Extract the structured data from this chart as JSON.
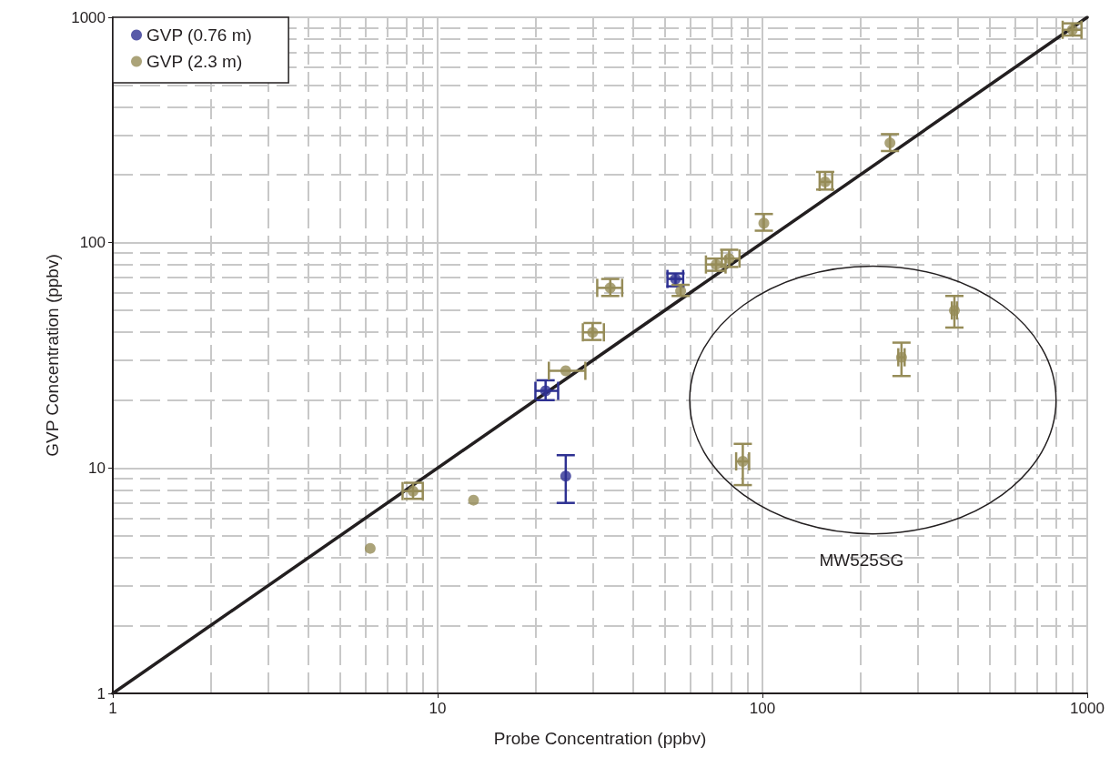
{
  "chart_data": {
    "type": "scatter",
    "xlabel": "Probe Concentration (ppbv)",
    "ylabel": "GVP Concentration (ppbv)",
    "log": "xy",
    "xlim": [
      1,
      1000
    ],
    "ylim": [
      1,
      1000
    ],
    "xticks": [
      1,
      10,
      100,
      1000
    ],
    "yticks": [
      1,
      10,
      100,
      1000
    ],
    "grid": true,
    "legend": "top left",
    "marker": "circle",
    "annotations": [
      "MW525SG"
    ],
    "series": [
      {
        "name": "GVP (0.76 m)",
        "color": "#2e3192",
        "x": [
          21.5,
          24.8,
          54
        ],
        "values": [
          22,
          9.2,
          69
        ],
        "errors": [
          [
            20,
            24.5
          ],
          [
            7,
            11.4
          ],
          [
            64,
            73
          ]
        ],
        "xerrors": [
          [
            20,
            23.5
          ],
          null,
          [
            51,
            57
          ]
        ]
      },
      {
        "name": "GVP (2.3 m)",
        "color": "#968c58",
        "x": [
          6.2,
          8.4,
          12.9,
          24.8,
          30,
          34,
          56,
          72,
          79,
          101,
          156,
          247,
          900,
          87,
          268,
          390
        ],
        "values": [
          4.4,
          7.9,
          7.2,
          27,
          40,
          63,
          61,
          80,
          85,
          122,
          186,
          277,
          880,
          10.7,
          31,
          50
        ],
        "errors": [
          null,
          [
            7.3,
            8.6
          ],
          null,
          null,
          [
            37,
            44
          ],
          [
            58,
            69
          ],
          [
            58,
            65
          ],
          [
            75,
            85
          ],
          [
            78,
            93
          ],
          [
            113,
            134
          ],
          [
            172,
            206
          ],
          [
            255,
            303
          ],
          [
            830,
            940
          ],
          [
            8.4,
            12.8
          ],
          [
            25.6,
            36
          ],
          [
            42,
            58
          ]
        ],
        "xerrors": [
          null,
          [
            7.8,
            9
          ],
          null,
          [
            22,
            28.5
          ],
          [
            28,
            32.5
          ],
          [
            31,
            37
          ],
          null,
          [
            67,
            77
          ],
          [
            75,
            85
          ],
          null,
          [
            150,
            164
          ],
          null,
          [
            840,
            960
          ],
          [
            83,
            91
          ],
          [
            262,
            274
          ],
          [
            383,
            397
          ]
        ]
      },
      {
        "type": "line",
        "color": "#231f20",
        "x": [
          1,
          1000
        ],
        "values": [
          1,
          1000
        ],
        "marker": "none",
        "line_style": "solid"
      }
    ]
  }
}
